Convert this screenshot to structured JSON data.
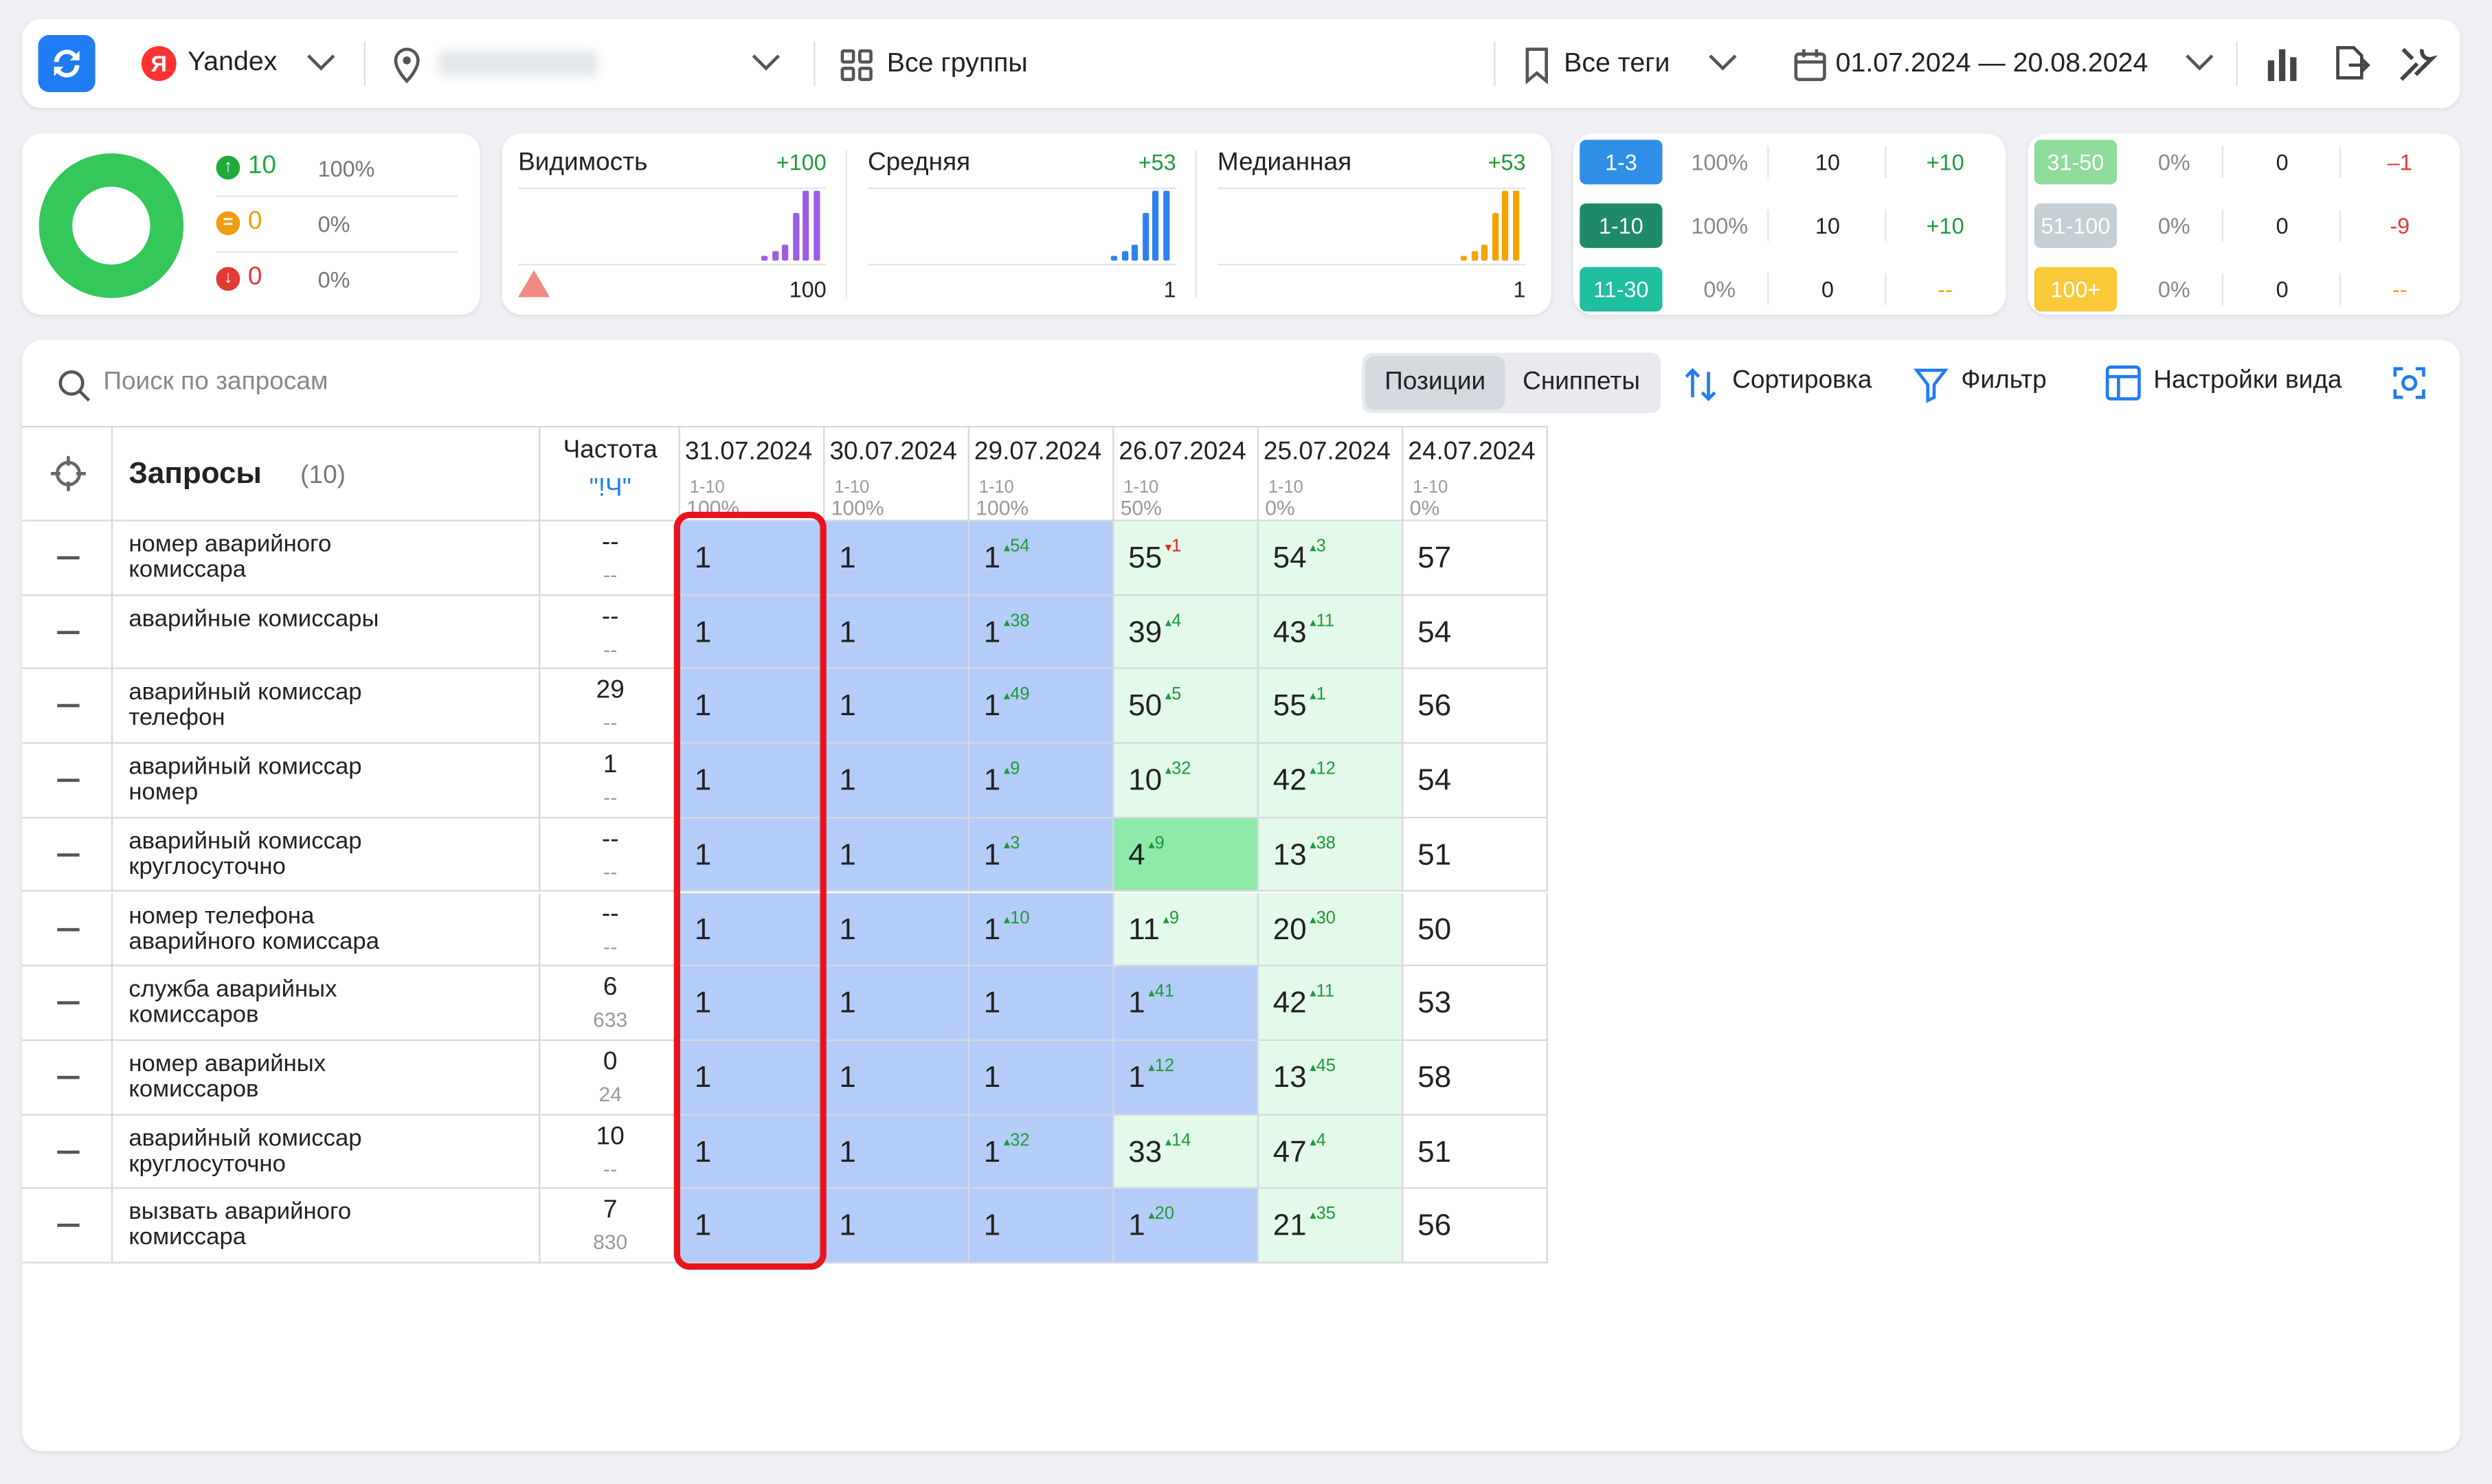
{
  "toolbar": {
    "engine": "Yandex",
    "groups": "Все группы",
    "tags": "Все теги",
    "date_range": "01.07.2024 — 20.08.2024"
  },
  "summary": [
    {
      "count": "10",
      "pct": "100%"
    },
    {
      "count": "0",
      "pct": "0%"
    },
    {
      "count": "0",
      "pct": "0%"
    }
  ],
  "metrics": [
    {
      "label": "Видимость",
      "delta": "+100",
      "value": "100"
    },
    {
      "label": "Средняя",
      "delta": "+53",
      "value": "1"
    },
    {
      "label": "Медианная",
      "delta": "+53",
      "value": "1"
    }
  ],
  "ranges": [
    {
      "label": "1-3",
      "pct": "100%",
      "count": "10",
      "delta": "+10"
    },
    {
      "label": "1-10",
      "pct": "100%",
      "count": "10",
      "delta": "+10"
    },
    {
      "label": "11-30",
      "pct": "0%",
      "count": "0",
      "delta": "--"
    },
    {
      "label": "31-50",
      "pct": "0%",
      "count": "0",
      "delta": "–1"
    },
    {
      "label": "51-100",
      "pct": "0%",
      "count": "0",
      "delta": "-9"
    },
    {
      "label": "100+",
      "pct": "0%",
      "count": "0",
      "delta": "--"
    }
  ],
  "search": {
    "placeholder": "Поиск по запросам"
  },
  "tabs": [
    "Позиции",
    "Сниппеты"
  ],
  "actions": [
    "Сортировка",
    "Фильтр",
    "Настройки вида"
  ],
  "table": {
    "queries_header": "Запросы",
    "queries_count": "(10)",
    "freq_header": "Частота",
    "freq_sub": "\"!Ч\"",
    "dates": [
      {
        "date": "31.07.2024",
        "range": "1-10",
        "pct": "100%"
      },
      {
        "date": "30.07.2024",
        "range": "1-10",
        "pct": "100%"
      },
      {
        "date": "29.07.2024",
        "range": "1-10",
        "pct": "100%"
      },
      {
        "date": "26.07.2024",
        "range": "1-10",
        "pct": "50%"
      },
      {
        "date": "25.07.2024",
        "range": "1-10",
        "pct": "0%"
      },
      {
        "date": "24.07.2024",
        "range": "1-10",
        "pct": "0%"
      }
    ],
    "rows": [
      {
        "query": "номер аварийного комиссара",
        "freq": "--",
        "freq2": "--",
        "cells": [
          {
            "pos": 1
          },
          {
            "pos": 1
          },
          {
            "pos": 1,
            "delta": "54"
          },
          {
            "pos": 55,
            "delta": "1",
            "trend": "down"
          },
          {
            "pos": 54,
            "delta": "3"
          },
          {
            "pos": 57
          }
        ]
      },
      {
        "query": "аварийные комиссары",
        "freq": "--",
        "freq2": "--",
        "cells": [
          {
            "pos": 1
          },
          {
            "pos": 1
          },
          {
            "pos": 1,
            "delta": "38"
          },
          {
            "pos": 39,
            "delta": "4"
          },
          {
            "pos": 43,
            "delta": "11"
          },
          {
            "pos": 54
          }
        ]
      },
      {
        "query": "аварийный комиссар телефон",
        "freq": "29",
        "freq2": "--",
        "cells": [
          {
            "pos": 1
          },
          {
            "pos": 1
          },
          {
            "pos": 1,
            "delta": "49"
          },
          {
            "pos": 50,
            "delta": "5"
          },
          {
            "pos": 55,
            "delta": "1"
          },
          {
            "pos": 56
          }
        ]
      },
      {
        "query": "аварийный комиссар номер",
        "freq": "1",
        "freq2": "--",
        "cells": [
          {
            "pos": 1
          },
          {
            "pos": 1
          },
          {
            "pos": 1,
            "delta": "9"
          },
          {
            "pos": 10,
            "delta": "32"
          },
          {
            "pos": 42,
            "delta": "12"
          },
          {
            "pos": 54
          }
        ]
      },
      {
        "query": "аварийный комиссар круглосуточно",
        "freq": "--",
        "freq2": "--",
        "cells": [
          {
            "pos": 1
          },
          {
            "pos": 1
          },
          {
            "pos": 1,
            "delta": "3"
          },
          {
            "pos": 4,
            "delta": "9"
          },
          {
            "pos": 13,
            "delta": "38"
          },
          {
            "pos": 51
          }
        ]
      },
      {
        "query": "номер телефона аварийного комиссара",
        "freq": "--",
        "freq2": "--",
        "cells": [
          {
            "pos": 1
          },
          {
            "pos": 1
          },
          {
            "pos": 1,
            "delta": "10"
          },
          {
            "pos": 11,
            "delta": "9"
          },
          {
            "pos": 20,
            "delta": "30"
          },
          {
            "pos": 50
          }
        ]
      },
      {
        "query": "служба аварийных комиссаров",
        "freq": "6",
        "freq2": "633",
        "cells": [
          {
            "pos": 1
          },
          {
            "pos": 1
          },
          {
            "pos": 1
          },
          {
            "pos": 1,
            "delta": "41"
          },
          {
            "pos": 42,
            "delta": "11"
          },
          {
            "pos": 53
          }
        ]
      },
      {
        "query": "номер аварийных комиссаров",
        "freq": "0",
        "freq2": "24",
        "cells": [
          {
            "pos": 1
          },
          {
            "pos": 1
          },
          {
            "pos": 1
          },
          {
            "pos": 1,
            "delta": "12"
          },
          {
            "pos": 13,
            "delta": "45"
          },
          {
            "pos": 58
          }
        ]
      },
      {
        "query": "аварийный комиссар круглосуточно",
        "freq": "10",
        "freq2": "--",
        "cells": [
          {
            "pos": 1
          },
          {
            "pos": 1
          },
          {
            "pos": 1,
            "delta": "32"
          },
          {
            "pos": 33,
            "delta": "14"
          },
          {
            "pos": 47,
            "delta": "4"
          },
          {
            "pos": 51
          }
        ]
      },
      {
        "query": "вызвать аварийного комиссара",
        "freq": "7",
        "freq2": "830",
        "cells": [
          {
            "pos": 1
          },
          {
            "pos": 1
          },
          {
            "pos": 1
          },
          {
            "pos": 1,
            "delta": "20"
          },
          {
            "pos": 21,
            "delta": "35"
          },
          {
            "pos": 56
          }
        ]
      }
    ]
  }
}
